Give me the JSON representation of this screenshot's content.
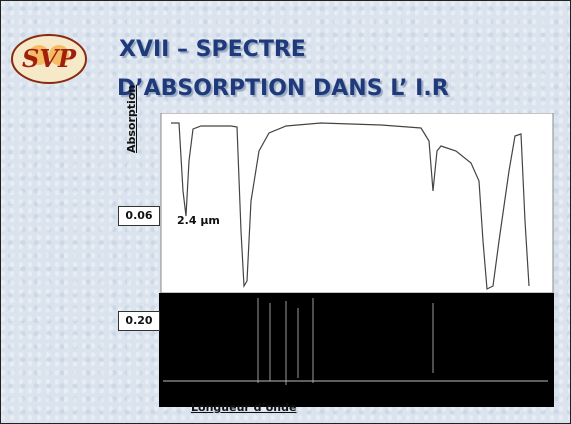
{
  "logo": "SVP",
  "title": {
    "line1": "XVII – SPECTRE",
    "line2": "D’ABSORPTION DANS L’ I.R"
  },
  "spectrum": {
    "y_label": "Absorption",
    "x_label": "Longueur d’onde",
    "markers": [
      "0.06",
      "2.4 µm",
      "0.20"
    ]
  }
}
